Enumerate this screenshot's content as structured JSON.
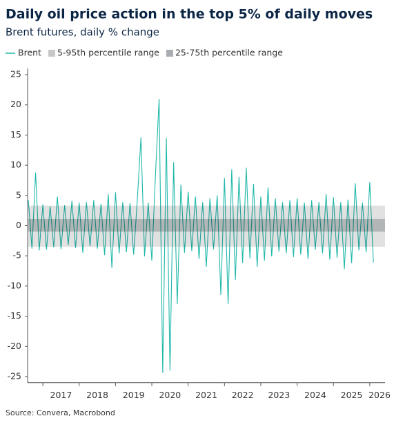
{
  "chart_data": {
    "type": "line",
    "title": "Daily oil price action in the top 5% of daily moves",
    "subtitle": "Brent futures, daily % change",
    "source": "Source: Convera, Macrobond",
    "x": [
      2016.6,
      2016.7,
      2016.8,
      2016.9,
      2017.0,
      2017.1,
      2017.2,
      2017.3,
      2017.4,
      2017.5,
      2017.6,
      2017.7,
      2017.8,
      2017.9,
      2018.0,
      2018.1,
      2018.2,
      2018.3,
      2018.4,
      2018.5,
      2018.6,
      2018.7,
      2018.8,
      2018.9,
      2019.0,
      2019.1,
      2019.2,
      2019.3,
      2019.4,
      2019.5,
      2019.6,
      2019.7,
      2019.8,
      2019.9,
      2020.0,
      2020.1,
      2020.2,
      2020.3,
      2020.4,
      2020.5,
      2020.6,
      2020.7,
      2020.8,
      2020.9,
      2021.0,
      2021.1,
      2021.2,
      2021.3,
      2021.4,
      2021.5,
      2021.6,
      2021.7,
      2021.8,
      2021.9,
      2022.0,
      2022.1,
      2022.2,
      2022.3,
      2022.4,
      2022.5,
      2022.6,
      2022.7,
      2022.8,
      2022.9,
      2023.0,
      2023.1,
      2023.2,
      2023.3,
      2023.4,
      2023.5,
      2023.6,
      2023.7,
      2023.8,
      2023.9,
      2024.0,
      2024.1,
      2024.2,
      2024.3,
      2024.4,
      2024.5,
      2024.6,
      2024.7,
      2024.8,
      2024.9,
      2025.0,
      2025.1,
      2025.2,
      2025.3,
      2025.4,
      2025.5,
      2025.6,
      2025.7,
      2025.8,
      2025.9,
      2026.0,
      2026.1
    ],
    "series": [
      {
        "name": "Brent",
        "color": "#1fb8aa",
        "values": [
          4.2,
          -3.8,
          8.8,
          -4.1,
          3.5,
          -4.0,
          3.2,
          -3.6,
          4.8,
          -3.9,
          3.4,
          -3.2,
          4.1,
          -3.7,
          3.8,
          -4.5,
          3.9,
          -3.4,
          4.2,
          -3.8,
          3.6,
          -4.9,
          5.2,
          -7.0,
          5.5,
          -4.6,
          3.9,
          -4.4,
          3.7,
          -4.8,
          4.2,
          14.6,
          -5.1,
          3.8,
          -5.8,
          8.4,
          21.0,
          -24.4,
          14.5,
          -24.0,
          10.5,
          -13.0,
          6.8,
          -4.5,
          5.6,
          -4.2,
          4.8,
          -5.5,
          3.9,
          -6.8,
          4.5,
          -3.9,
          5.0,
          -11.5,
          7.9,
          -13.0,
          9.3,
          -9.0,
          8.1,
          -6.2,
          9.6,
          -5.4,
          6.9,
          -6.8,
          4.8,
          -5.8,
          6.3,
          -5.1,
          4.5,
          -4.3,
          3.9,
          -4.6,
          4.2,
          -5.2,
          4.5,
          -4.8,
          3.8,
          -5.5,
          4.2,
          -4.0,
          3.9,
          -4.6,
          5.2,
          -5.6,
          4.7,
          -5.3,
          3.9,
          -7.2,
          4.3,
          -6.2,
          7.0,
          -4.1,
          3.8,
          -4.4,
          7.2,
          -6.1
        ]
      }
    ],
    "bands": [
      {
        "name": "5-95th percentile range",
        "color": "#c8c8c8",
        "range": [
          -3.5,
          3.3
        ]
      },
      {
        "name": "25-75th percentile range",
        "color": "#a9adb1",
        "range": [
          -1.0,
          1.1
        ]
      }
    ],
    "xlim": [
      2016.58,
      2026.42
    ],
    "xticks": [
      2017,
      2018,
      2019,
      2020,
      2021,
      2022,
      2023,
      2024,
      2025,
      2026
    ],
    "ylim": [
      -26,
      26
    ],
    "yticks": [
      -25,
      -20,
      -15,
      -10,
      -5,
      0,
      5,
      10,
      15,
      20,
      25
    ]
  }
}
